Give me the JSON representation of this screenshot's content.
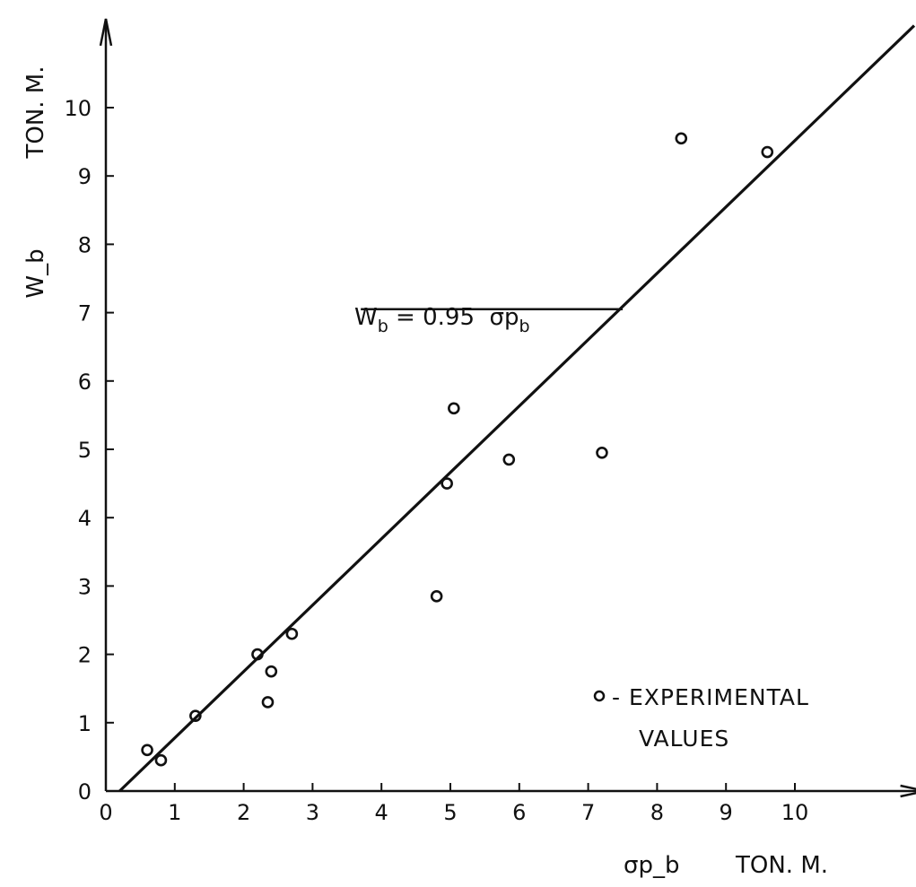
{
  "chart_data": {
    "type": "scatter",
    "title": "",
    "xlabel": "σp_b",
    "xlabel_unit": "TON. M.",
    "ylabel": "W_b",
    "ylabel_unit": "TON. M.",
    "xlim": [
      0,
      12.0
    ],
    "ylim": [
      0,
      11.3
    ],
    "x_ticks": [
      "0",
      "1",
      "2",
      "3",
      "4",
      "5",
      "6",
      "7",
      "8",
      "9",
      "10"
    ],
    "y_ticks": [
      "0",
      "1",
      "2",
      "3",
      "4",
      "5",
      "6",
      "7",
      "8",
      "9",
      "10"
    ],
    "grid": false,
    "series": [
      {
        "name": "EXPERIMENTAL VALUES",
        "points": [
          [
            0.6,
            0.6
          ],
          [
            0.8,
            0.45
          ],
          [
            1.3,
            1.1
          ],
          [
            2.2,
            2.0
          ],
          [
            2.35,
            1.3
          ],
          [
            2.4,
            1.75
          ],
          [
            2.7,
            2.3
          ],
          [
            4.8,
            2.85
          ],
          [
            4.95,
            4.5
          ],
          [
            5.05,
            5.6
          ],
          [
            5.85,
            4.85
          ],
          [
            7.2,
            4.95
          ],
          [
            8.35,
            9.55
          ],
          [
            9.6,
            9.35
          ]
        ]
      }
    ],
    "fit_line": {
      "label_main": "W",
      "label_sub": "b",
      "label_eq": " = 0.95  σp",
      "label_sub2": "b",
      "start": [
        0.2,
        0.0
      ],
      "end": [
        12.0,
        11.2
      ],
      "leader_start_x": 3.7,
      "leader_end_x": 7.5,
      "leader_y": 7.05
    },
    "legend": {
      "symbol": "o",
      "line1": "- EXPERIMENTAL",
      "line2": "VALUES",
      "placement": "bottom-right"
    }
  }
}
